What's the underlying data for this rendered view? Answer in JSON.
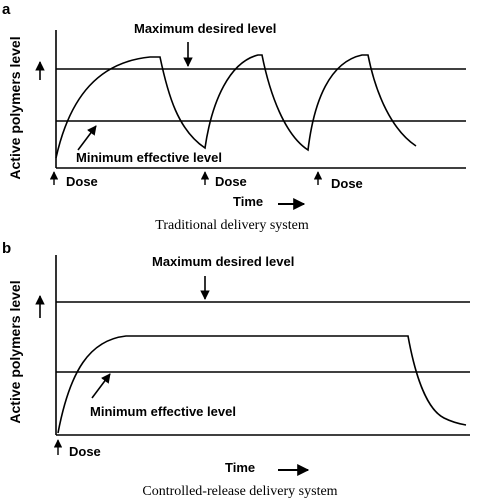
{
  "panel_a": {
    "letter": "a",
    "y_label": "Active polymers level",
    "y_arrow": "↑",
    "max_label": "Maximum desired level",
    "min_label": "Minimum effective level",
    "dose_labels": [
      "Dose",
      "Dose",
      "Dose"
    ],
    "time_label": "Time",
    "caption": "Traditional delivery system"
  },
  "panel_b": {
    "letter": "b",
    "y_label": "Active polymers level",
    "y_arrow": "↑",
    "max_label": "Maximum desired level",
    "min_label": "Minimum effective level",
    "dose_label": "Dose",
    "time_label": "Time",
    "caption": "Controlled-release delivery system"
  }
}
